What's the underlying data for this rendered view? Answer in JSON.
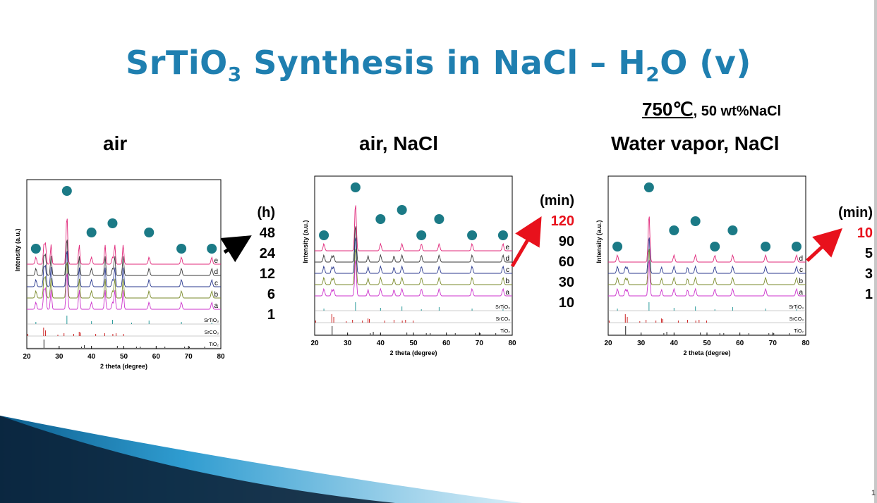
{
  "slide": {
    "title_main": "SrTiO",
    "title_sub3": "3",
    "title_mid": " Synthesis in NaCl – H",
    "title_sub2": "2",
    "title_end": "O (v)",
    "condition_temp": "750℃",
    "condition_rest": ", 50 wt%NaCl",
    "page_number": "1",
    "accent_color": "#1f7fb0",
    "highlight_color": "#e8111c"
  },
  "panels": [
    {
      "heading": "air",
      "legend_unit": "(h)",
      "legend_values": [
        "48",
        "24",
        "12",
        "6",
        "1"
      ],
      "highlight_index": -1,
      "arrow_color": "#000000"
    },
    {
      "heading": "air, NaCl",
      "legend_unit": "(min)",
      "legend_values": [
        "120",
        "90",
        "60",
        "30",
        "10"
      ],
      "highlight_index": 0,
      "arrow_color": "#e8111c"
    },
    {
      "heading": "Water vapor, NaCl",
      "legend_unit": "(min)",
      "legend_values": [
        "10",
        "5",
        "3",
        "1"
      ],
      "highlight_index": 0,
      "arrow_color": "#e8111c"
    }
  ],
  "chart_data": [
    {
      "type": "line",
      "xlabel": "2 theta (degree)",
      "ylabel": "Intensity (a.u.)",
      "xlim": [
        20,
        80
      ],
      "xticks": [
        "20",
        "30",
        "40",
        "50",
        "60",
        "70",
        "80"
      ],
      "trace_labels": [
        "e",
        "d",
        "c",
        "b",
        "a"
      ],
      "reference_labels": [
        "SrTiO₃",
        "SrCO₃",
        "TiO₂"
      ],
      "marker_peaks_2theta": [
        22.8,
        32.4,
        40.0,
        46.5,
        57.8,
        67.8,
        77.2
      ],
      "series_colors": [
        "#e0287a",
        "#3a3a3a",
        "#2b3a8f",
        "#7a8a2a",
        "#cc33cc"
      ]
    },
    {
      "type": "line",
      "xlabel": "2 theta (degree)",
      "ylabel": "Intensity (a.u.)",
      "xlim": [
        20,
        80
      ],
      "xticks": [
        "20",
        "30",
        "40",
        "50",
        "60",
        "70",
        "80"
      ],
      "trace_labels": [
        "e",
        "d",
        "c",
        "b",
        "a"
      ],
      "reference_labels": [
        "SrTiO₃",
        "SrCO₃",
        "TiO₂"
      ],
      "marker_peaks_2theta": [
        22.8,
        32.4,
        40.0,
        46.5,
        52.4,
        57.8,
        67.8,
        77.2
      ],
      "series_colors": [
        "#e0287a",
        "#3a3a3a",
        "#2b3a8f",
        "#7a8a2a",
        "#cc33cc"
      ]
    },
    {
      "type": "line",
      "xlabel": "2 theta (degree)",
      "ylabel": "Intensity (a.u.)",
      "xlim": [
        20,
        80
      ],
      "xticks": [
        "20",
        "30",
        "40",
        "50",
        "60",
        "70",
        "80"
      ],
      "trace_labels": [
        "d",
        "c",
        "b",
        "a"
      ],
      "reference_labels": [
        "SrTiO₃",
        "SrCO₃",
        "TiO₂"
      ],
      "marker_peaks_2theta": [
        22.8,
        32.4,
        40.0,
        46.5,
        52.4,
        57.8,
        67.8,
        77.2
      ],
      "series_colors": [
        "#e0287a",
        "#2b3a8f",
        "#7a8a2a",
        "#cc33cc"
      ]
    }
  ]
}
